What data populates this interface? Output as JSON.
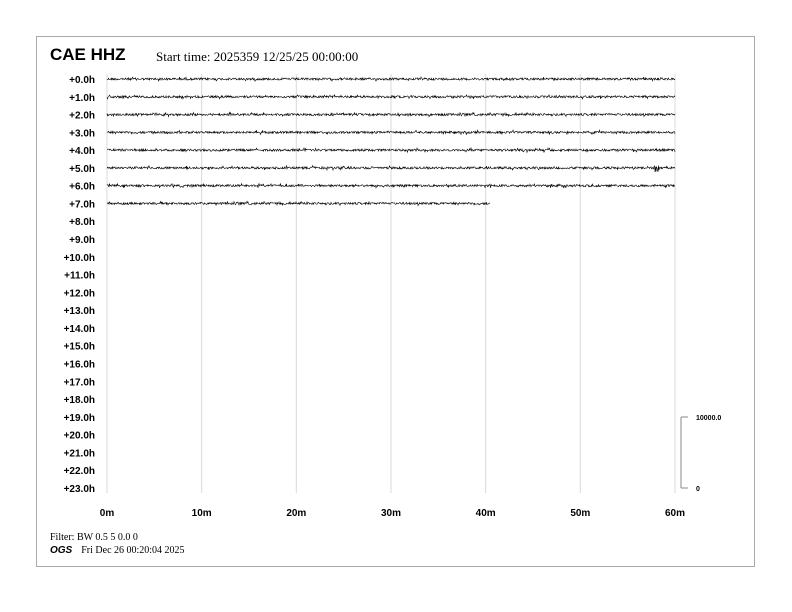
{
  "header": {
    "station": "CAE HHZ",
    "start_time": "Start time: 2025359 12/25/25 00:00:00"
  },
  "footer": {
    "filter": "Filter: BW 0.5 5 0.0 0",
    "agency": "OGS",
    "generated": "Fri Dec 26 00:20:04 2025"
  },
  "chart_data": {
    "type": "line",
    "subtype": "helicorder",
    "row_labels": [
      "+0.0h",
      "+1.0h",
      "+2.0h",
      "+3.0h",
      "+4.0h",
      "+5.0h",
      "+6.0h",
      "+7.0h",
      "+8.0h",
      "+9.0h",
      "+10.0h",
      "+11.0h",
      "+12.0h",
      "+13.0h",
      "+14.0h",
      "+15.0h",
      "+16.0h",
      "+17.0h",
      "+18.0h",
      "+19.0h",
      "+20.0h",
      "+21.0h",
      "+22.0h",
      "+23.0h"
    ],
    "x_ticks": [
      "0m",
      "10m",
      "20m",
      "30m",
      "40m",
      "50m",
      "60m"
    ],
    "xlim": [
      0,
      60
    ],
    "grid": "vertical",
    "trace_end_minutes": [
      60,
      60,
      60,
      60,
      60,
      60,
      60,
      40.5
    ],
    "trace_color": "#000000",
    "grid_color": "#d9d9d9",
    "scale": {
      "top_label": "10000.0",
      "bottom_label": "0"
    }
  }
}
